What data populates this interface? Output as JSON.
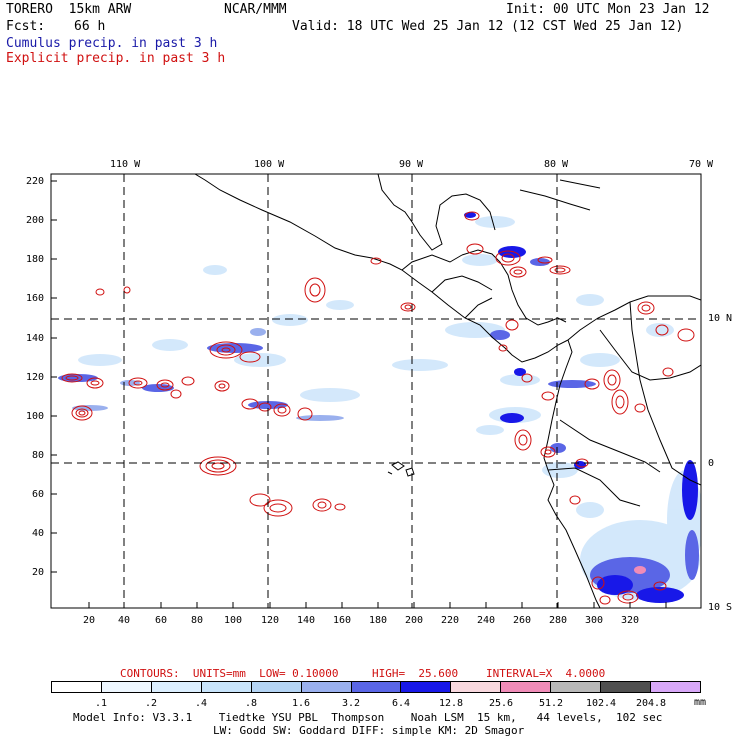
{
  "header": {
    "model": "TORERO  15km ARW",
    "org": "NCAR/MMM",
    "init": "Init: 00 UTC Mon 23 Jan 12",
    "fcst_label": "Fcst:",
    "fcst_value": "66 h",
    "valid": "Valid: 18 UTC Wed 25 Jan 12 (12 CST Wed 25 Jan 12)",
    "legend_cumulus": "Cumulus precip. in past 3 h",
    "legend_explicit": "Explicit precip. in past 3 h"
  },
  "map": {
    "lon_labels": [
      "110 W",
      "100 W",
      "90 W",
      "80 W",
      "70 W"
    ],
    "lat_labels": [
      "10 N",
      "0",
      "10 S"
    ],
    "x_ticks": [
      "20",
      "40",
      "60",
      "80",
      "100",
      "120",
      "140",
      "160",
      "180",
      "200",
      "220",
      "240",
      "260",
      "280",
      "300",
      "320"
    ],
    "y_ticks": [
      "220",
      "200",
      "180",
      "160",
      "140",
      "120",
      "100",
      "80",
      "60",
      "40",
      "20"
    ]
  },
  "contour_info": {
    "contours": "CONTOURS:  UNITS=mm  LOW= 0.10000",
    "high": "HIGH=  25.600",
    "interval": "INTERVAL=X  4.0000"
  },
  "colorbar": {
    "unit": "mm",
    "labels": [
      ".1",
      ".2",
      ".4",
      ".8",
      "1.6",
      "3.2",
      "6.4",
      "12.8",
      "25.6",
      "51.2",
      "102.4",
      "204.8"
    ],
    "colors": [
      "#ffffff",
      "#eef7ff",
      "#dcefff",
      "#c8e4fb",
      "#b4d4f4",
      "#9ab0ee",
      "#5a66e6",
      "#1818e8",
      "#f8d8de",
      "#f08cb8",
      "#b8b8b8",
      "#505050",
      "#d8a8f8"
    ]
  },
  "footer": {
    "line1": "Model Info: V3.3.1    Tiedtke YSU PBL  Thompson    Noah LSM  15 km,   44 levels,  102 sec",
    "line2": "LW: Godd SW: Goddard DIFF: simple KM: 2D Smagor"
  }
}
